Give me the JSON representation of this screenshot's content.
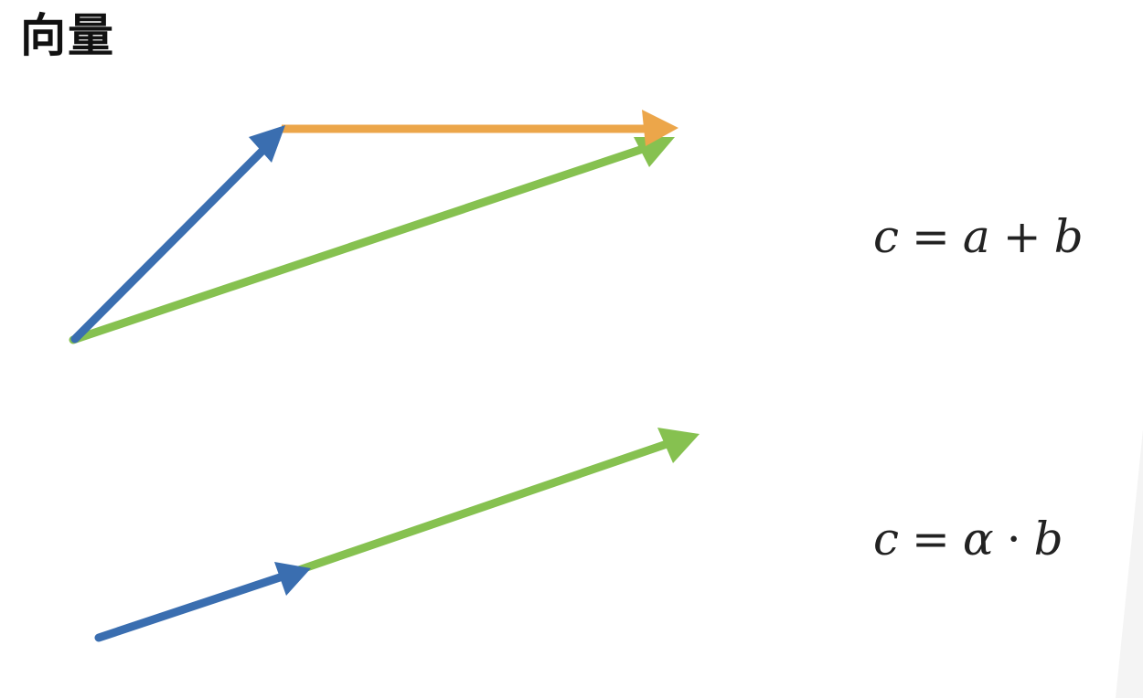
{
  "slide": {
    "title": "向量"
  },
  "formulas": {
    "sum": {
      "lhs": "c",
      "eq": "=",
      "a": "a",
      "plus": "+",
      "b": "b"
    },
    "scale": {
      "lhs": "c",
      "eq": "=",
      "alpha": "α",
      "dot": "·",
      "b": "b"
    }
  },
  "colors": {
    "vector_a": "#3a6eb0",
    "vector_b": "#eca64a",
    "vector_c": "#86c150",
    "text": "#222222"
  }
}
